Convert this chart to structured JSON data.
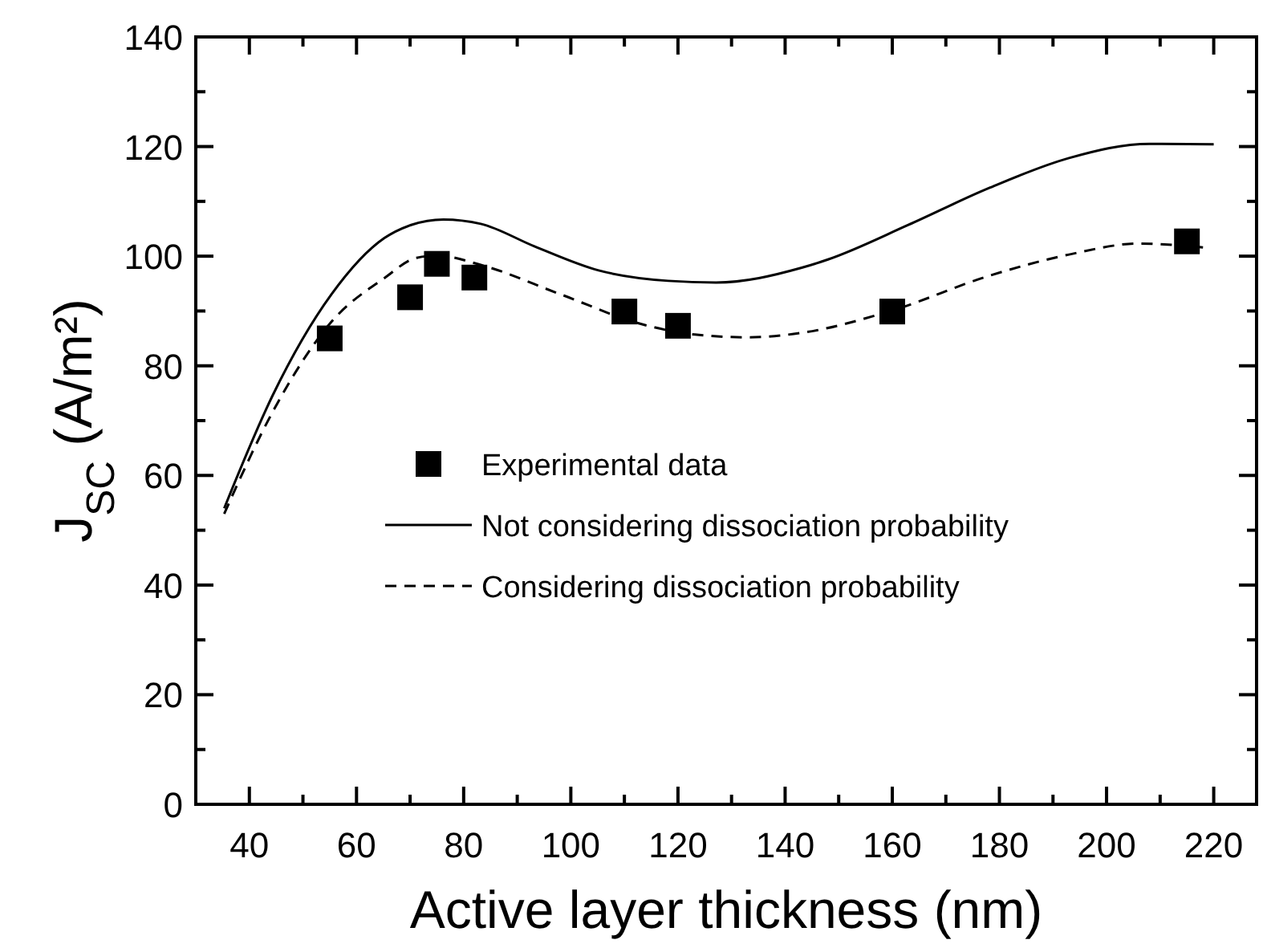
{
  "chart_data": {
    "type": "line",
    "xlabel": "Active layer thickness (nm)",
    "ylabel": "J$_{SC}$ (A/m²)",
    "xlim": [
      30,
      228
    ],
    "xticks": [
      40,
      {
        "value": 50,
        "label": null
      },
      60,
      {
        "value": 70,
        "label": null
      },
      80,
      {
        "value": 90,
        "label": null
      },
      100,
      {
        "value": 110,
        "label": null
      },
      120,
      {
        "value": 130,
        "label": null
      },
      140,
      {
        "value": 150,
        "label": null
      },
      160,
      {
        "value": 170,
        "label": null
      },
      180,
      {
        "value": 190,
        "label": null
      },
      200,
      {
        "value": 210,
        "label": null
      },
      220
    ],
    "ylim": [
      0,
      140
    ],
    "yticks": [
      0,
      {
        "value": 10,
        "label": null
      },
      20,
      {
        "value": 30,
        "label": null
      },
      40,
      {
        "value": 50,
        "label": null
      },
      60,
      {
        "value": 70,
        "label": null
      },
      80,
      {
        "value": 90,
        "label": null
      },
      100,
      {
        "value": 110,
        "label": null
      },
      120,
      {
        "value": 130,
        "label": null
      },
      140
    ],
    "grid": false,
    "legend": "center",
    "series": [
      {
        "name": "Experimental data",
        "type": "scatter",
        "marker": "square",
        "color": "#000000",
        "x": [
          55,
          70,
          75,
          82,
          110,
          120,
          160,
          215
        ],
        "values": [
          85,
          92.5,
          98.6,
          96.1,
          89.9,
          87.3,
          89.9,
          102.7
        ]
      },
      {
        "name": "Not considering dissociation probability",
        "line_style": "solid",
        "color": "#000000",
        "x": [
          35.3,
          44.3,
          55.3,
          65.2,
          70.2,
          76.2,
          83.2,
          93.2,
          105.2,
          118.2,
          127.1,
          143.1,
          148,
          163,
          178,
          193,
          208,
          220
        ],
        "values": [
          54,
          74.5,
          93,
          103.3,
          105.7,
          106.7,
          105.9,
          101.8,
          97.4,
          95.5,
          95.2,
          97.9,
          99.4,
          105.7,
          112.4,
          117.9,
          120.5,
          120.4
        ]
      },
      {
        "name": "Considering dissociation probability",
        "line_style": "dashed",
        "color": "#000000",
        "x": [
          35.3,
          44.3,
          55.3,
          65.2,
          71.2,
          75.2,
          83.2,
          98.2,
          113.2,
          123.2,
          133.1,
          143,
          160,
          178,
          193,
          206,
          218
        ],
        "values": [
          53,
          71.5,
          88,
          96,
          99.7,
          100.1,
          98.4,
          93,
          87.6,
          85.7,
          85.2,
          86,
          90.1,
          96.4,
          100.3,
          102.3,
          101.6
        ]
      }
    ]
  }
}
